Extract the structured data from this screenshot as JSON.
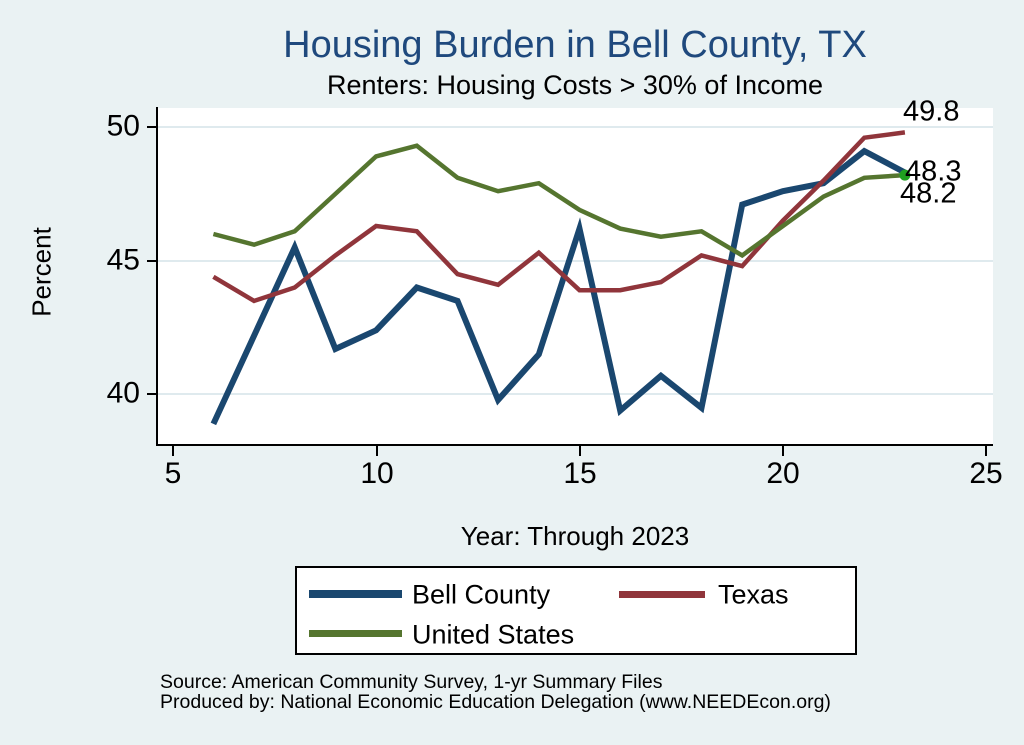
{
  "chart_data": {
    "type": "line",
    "title": "Housing Burden in Bell County, TX",
    "subtitle": "Renters: Housing Costs > 30% of Income",
    "xlabel": "Year: Through 2023",
    "ylabel": "Percent",
    "x_ticks": [
      "5",
      "10",
      "15",
      "20",
      "25"
    ],
    "y_ticks": [
      "40",
      "45",
      "50"
    ],
    "xlim": [
      4.6,
      25.2
    ],
    "ylim": [
      38.1,
      50.7
    ],
    "grid": true,
    "legend_position": "below",
    "x": [
      6,
      7,
      8,
      9,
      10,
      11,
      12,
      13,
      14,
      15,
      16,
      17,
      18,
      19,
      20,
      21,
      22,
      23
    ],
    "series": [
      {
        "id": "bell-county",
        "name": "Bell County",
        "color": "#1a476f",
        "line_width": 6,
        "values": [
          38.9,
          42.2,
          45.5,
          41.7,
          42.4,
          44.0,
          43.5,
          39.8,
          41.5,
          46.2,
          39.4,
          40.7,
          39.5,
          47.1,
          47.6,
          47.9,
          49.1,
          48.3
        ]
      },
      {
        "id": "texas",
        "name": "Texas",
        "color": "#90353b",
        "line_width": 4.5,
        "values": [
          44.4,
          43.5,
          44.0,
          45.2,
          46.3,
          46.1,
          44.5,
          44.1,
          45.3,
          43.9,
          43.9,
          44.2,
          45.2,
          44.8,
          46.5,
          48.0,
          49.6,
          49.8
        ]
      },
      {
        "id": "united-states",
        "name": "United States",
        "color": "#55752f",
        "line_width": 4.5,
        "end_marker": true,
        "marker_color": "#20a020",
        "values": [
          46.0,
          45.6,
          46.1,
          47.5,
          48.9,
          49.3,
          48.1,
          47.6,
          47.9,
          46.9,
          46.2,
          45.9,
          46.1,
          45.2,
          46.3,
          47.4,
          48.1,
          48.2
        ]
      }
    ],
    "end_labels": {
      "texas": "49.8",
      "bell_county": "48.3",
      "united_states": "48.2"
    }
  },
  "colors": {
    "background": "#eaf2f3",
    "plot_background": "#ffffff",
    "gridline": "#dfeaee",
    "axis": "#000000",
    "title": "#1f497d"
  },
  "source": {
    "line1": "Source: American Community Survey, 1-yr Summary Files",
    "line2": "Produced by: National Economic Education Delegation (www.NEEDEcon.org)"
  }
}
